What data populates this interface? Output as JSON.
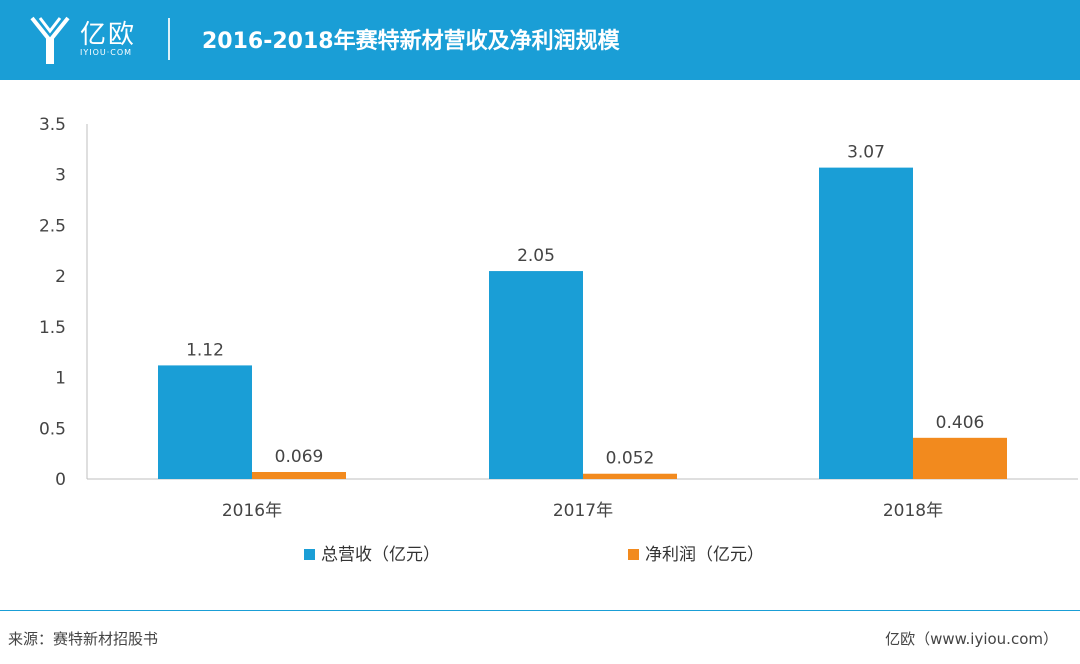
{
  "header": {
    "logo_text": "亿欧",
    "logo_sub": "IYIOU·COM",
    "title": "2016-2018年赛特新材营收及净利润规模"
  },
  "colors": {
    "header_bg": "#1a9ed6",
    "revenue": "#1a9ed6",
    "profit": "#f28a1e",
    "axis": "#bfbfbf"
  },
  "chart_data": {
    "type": "bar",
    "categories": [
      "2016年",
      "2017年",
      "2018年"
    ],
    "series": [
      {
        "name": "总营收（亿元）",
        "values": [
          1.12,
          2.05,
          3.07
        ],
        "labels": [
          "1.12",
          "2.05",
          "3.07"
        ]
      },
      {
        "name": "净利润（亿元）",
        "values": [
          0.069,
          0.052,
          0.406
        ],
        "labels": [
          "0.069",
          "0.052",
          "0.406"
        ]
      }
    ],
    "yticks": [
      "0",
      "0.5",
      "1",
      "1.5",
      "2",
      "2.5",
      "3",
      "3.5"
    ],
    "ylim": [
      0,
      3.5
    ],
    "grid": false,
    "legend": "bottom"
  },
  "footer": {
    "source": "来源：赛特新材招股书",
    "credit": "亿欧（www.iyiou.com）"
  }
}
